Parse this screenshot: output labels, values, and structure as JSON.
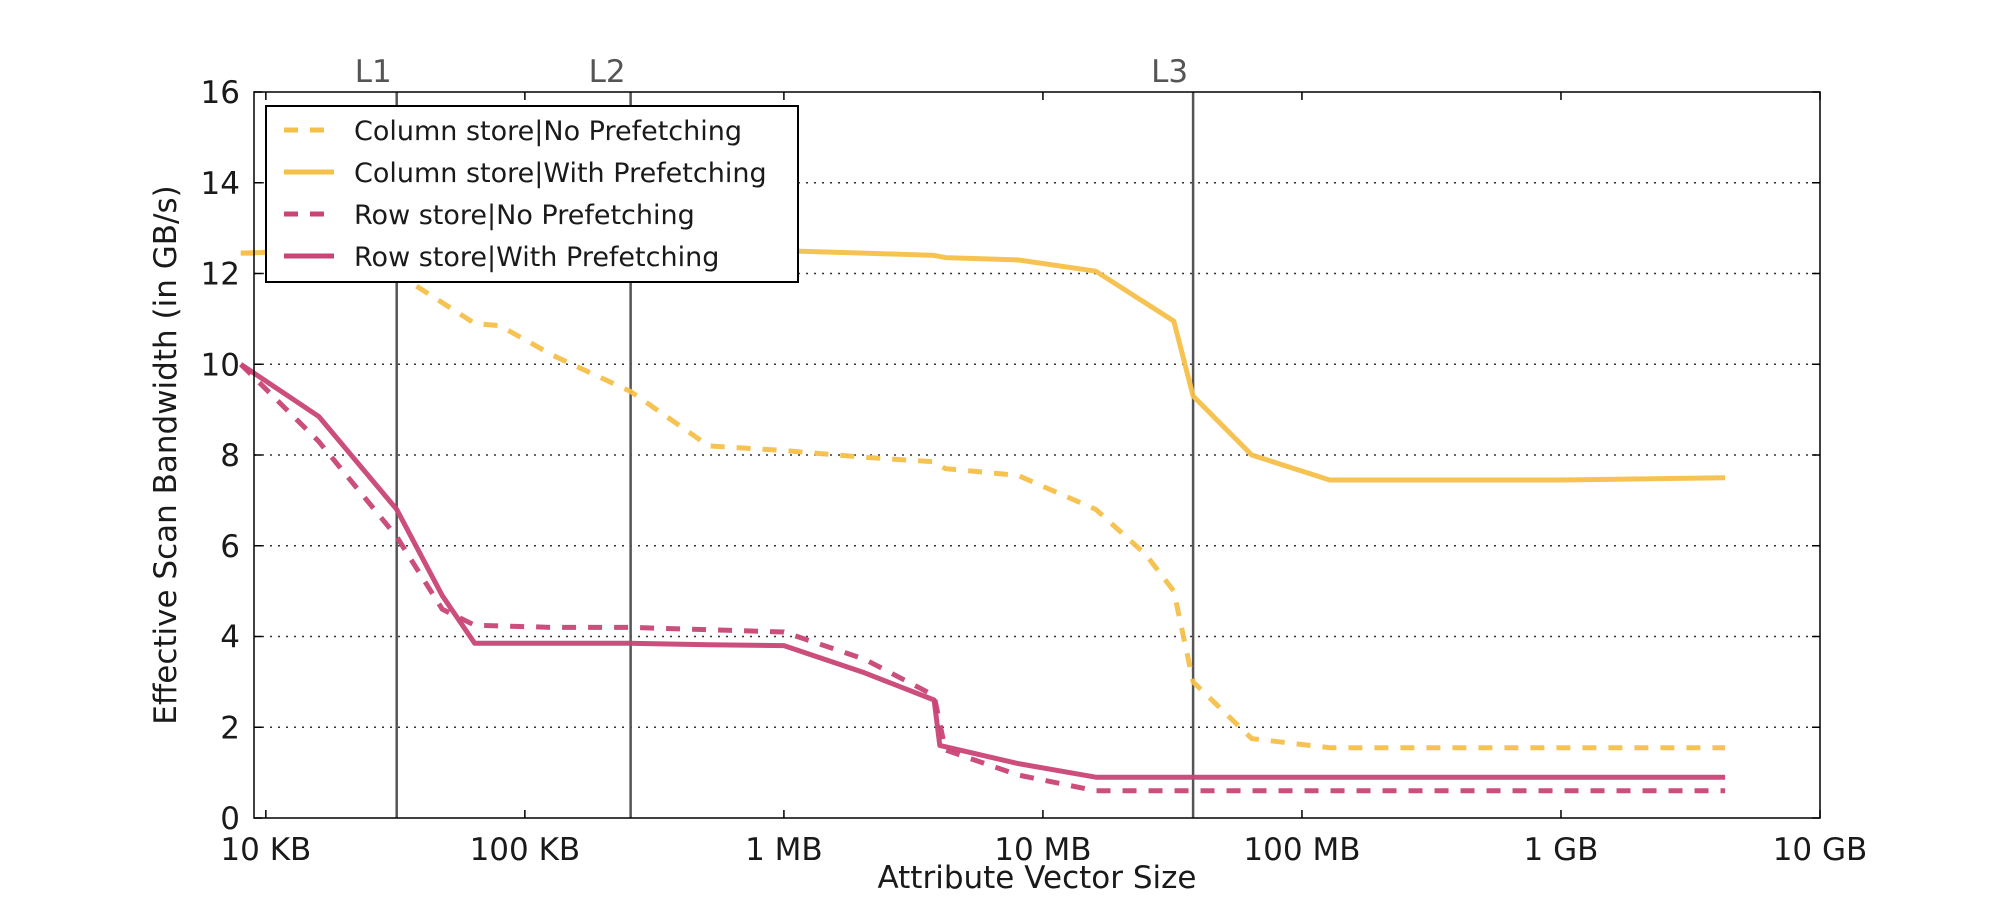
{
  "chart_data": {
    "type": "line",
    "xscale": "log",
    "xlabel": "Attribute Vector Size",
    "ylabel": "Effective Scan Bandwidth (in GB/s)",
    "xlim": [
      "9 KB",
      "10 GB"
    ],
    "ylim": [
      0,
      16
    ],
    "x_ticks": [
      {
        "label": "10 KB",
        "kb": 10
      },
      {
        "label": "100 KB",
        "kb": 100
      },
      {
        "label": "1 MB",
        "kb": 1000
      },
      {
        "label": "10 MB",
        "kb": 10000
      },
      {
        "label": "100 MB",
        "kb": 100000
      },
      {
        "label": "1 GB",
        "kb": 1000000
      },
      {
        "label": "10 GB",
        "kb": 10000000
      }
    ],
    "y_ticks": [
      0,
      2,
      4,
      6,
      8,
      10,
      12,
      14,
      16
    ],
    "grid": "horizontal dotted",
    "legend_position": "upper-left",
    "cache_markers": [
      {
        "label": "L1",
        "kb": 32
      },
      {
        "label": "L2",
        "kb": 256
      },
      {
        "label": "L3",
        "kb": 38000
      }
    ],
    "series": [
      {
        "name": "Column store|No Prefetching",
        "color": "#f5c04a",
        "dash": true,
        "points": [
          [
            8,
            12.45
          ],
          [
            16,
            12.45
          ],
          [
            32,
            12.0
          ],
          [
            64,
            10.9
          ],
          [
            80,
            10.85
          ],
          [
            128,
            10.2
          ],
          [
            256,
            9.4
          ],
          [
            512,
            8.2
          ],
          [
            1000,
            8.1
          ],
          [
            2048,
            7.95
          ],
          [
            3800,
            7.85
          ],
          [
            4200,
            7.7
          ],
          [
            8000,
            7.55
          ],
          [
            16000,
            6.8
          ],
          [
            25000,
            5.8
          ],
          [
            32000,
            5.0
          ],
          [
            38000,
            3.0
          ],
          [
            64000,
            1.75
          ],
          [
            128000,
            1.55
          ],
          [
            4300000,
            1.55
          ]
        ]
      },
      {
        "name": "Column store|With Prefetching",
        "color": "#f5c04a",
        "dash": false,
        "points": [
          [
            8,
            12.45
          ],
          [
            16,
            12.5
          ],
          [
            512,
            12.5
          ],
          [
            1000,
            12.5
          ],
          [
            2048,
            12.45
          ],
          [
            3800,
            12.4
          ],
          [
            4200,
            12.35
          ],
          [
            8000,
            12.3
          ],
          [
            16000,
            12.05
          ],
          [
            32000,
            10.95
          ],
          [
            38000,
            9.3
          ],
          [
            64000,
            8.0
          ],
          [
            128000,
            7.45
          ],
          [
            256000,
            7.45
          ],
          [
            1000000,
            7.45
          ],
          [
            4300000,
            7.5
          ]
        ]
      },
      {
        "name": "Row store|No Prefetching",
        "color": "#c94575",
        "dash": true,
        "points": [
          [
            8,
            10.0
          ],
          [
            16,
            8.3
          ],
          [
            32,
            6.2
          ],
          [
            48,
            4.6
          ],
          [
            64,
            4.25
          ],
          [
            128,
            4.2
          ],
          [
            256,
            4.2
          ],
          [
            512,
            4.15
          ],
          [
            1000,
            4.1
          ],
          [
            2048,
            3.5
          ],
          [
            3800,
            2.7
          ],
          [
            4200,
            1.5
          ],
          [
            8000,
            0.95
          ],
          [
            16000,
            0.6
          ],
          [
            4300000,
            0.6
          ]
        ]
      },
      {
        "name": "Row store|With Prefetching",
        "color": "#c94575",
        "dash": false,
        "points": [
          [
            8,
            10.0
          ],
          [
            16,
            8.85
          ],
          [
            32,
            6.8
          ],
          [
            48,
            4.9
          ],
          [
            64,
            3.85
          ],
          [
            128,
            3.85
          ],
          [
            256,
            3.85
          ],
          [
            512,
            3.82
          ],
          [
            1000,
            3.8
          ],
          [
            2048,
            3.2
          ],
          [
            3800,
            2.6
          ],
          [
            4000,
            1.6
          ],
          [
            8000,
            1.2
          ],
          [
            16000,
            0.9
          ],
          [
            4300000,
            0.9
          ]
        ]
      }
    ]
  }
}
